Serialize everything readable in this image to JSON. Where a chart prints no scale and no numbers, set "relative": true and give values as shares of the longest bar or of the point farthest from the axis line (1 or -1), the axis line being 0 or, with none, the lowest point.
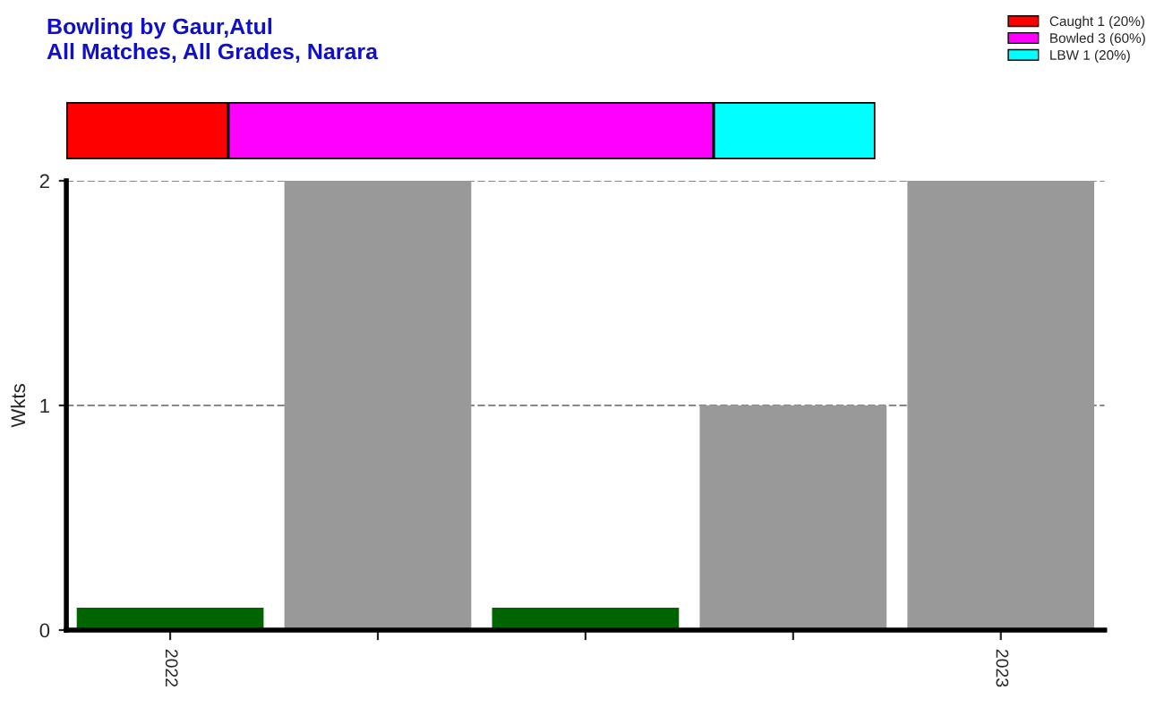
{
  "chart_data": [
    {
      "type": "bar",
      "title": "Bowling by Gaur,Atul",
      "subtitle": "All Matches, All Grades, Narara",
      "orientation": "horizontal",
      "stacked": true,
      "relative": true,
      "categories": [
        null
      ],
      "legend": "top right",
      "series": [
        {
          "name": "Caught 1 (20%)",
          "color": "#ff0000",
          "values": [
            0.2
          ]
        },
        {
          "name": "Bowled 3 (60%)",
          "color": "#ff00ff",
          "values": [
            0.6
          ]
        },
        {
          "name": "LBW 1 (20%)",
          "color": "#00ffff",
          "values": [
            0.2
          ]
        }
      ]
    },
    {
      "type": "bar",
      "ylabel": "Wkts",
      "categories": [
        "2022",
        null,
        null,
        null,
        "2023"
      ],
      "values": [
        0.1,
        2,
        0.1,
        1,
        2
      ],
      "colors": [
        "#006400",
        "#999999",
        "#006400",
        "#999999",
        "#999999"
      ],
      "ylim": [
        0,
        2
      ],
      "yticks": [
        0,
        1,
        2
      ],
      "grid": "y"
    }
  ]
}
